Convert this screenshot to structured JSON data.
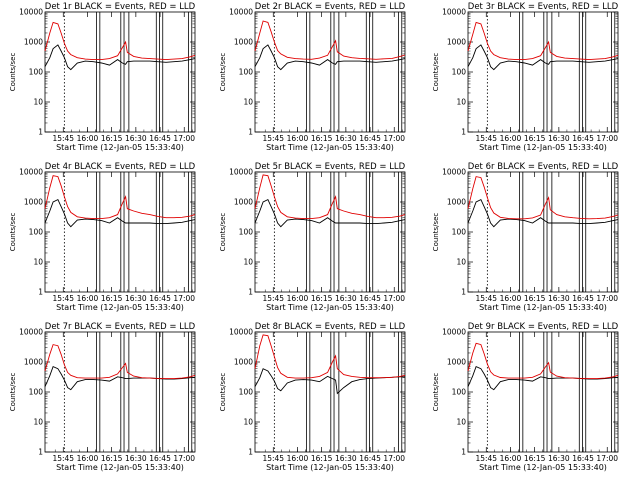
{
  "chart_data": {
    "type": "line",
    "layout": "3x3 grid",
    "y_scale": "log",
    "ylim": [
      1,
      10000
    ],
    "y_ticks": [
      "1",
      "10",
      "100",
      "1000",
      "10000"
    ],
    "ylabel": "Counts/sec",
    "x_ticks": [
      "15:45",
      "16:00",
      "16:15",
      "16:30",
      "16:45",
      "17:00"
    ],
    "xlabel": "Start Time (12-Jan-05 15:33:40)",
    "xlim_minutes_after_start": [
      0,
      93
    ],
    "series_colors": {
      "events": "#000000",
      "lld": "#e00000"
    },
    "time_minutes_after_start": [
      0,
      3,
      5,
      8,
      10,
      12,
      14,
      16,
      20,
      25,
      30,
      35,
      40,
      45,
      48,
      50,
      51,
      55,
      60,
      65,
      70,
      75,
      80,
      85,
      90,
      93
    ],
    "vertical_markers_minutes_after_start": [
      12,
      32,
      34,
      47,
      49,
      52,
      69,
      71,
      73,
      89,
      91
    ],
    "panels": [
      {
        "title": "Det 1r BLACK = Events, RED = LLD",
        "series": [
          {
            "color": "#000000",
            "values": [
              150,
              300,
              600,
              800,
              500,
              300,
              150,
              120,
              200,
              230,
              220,
              200,
              170,
              260,
              200,
              180,
              220,
              230,
              230,
              230,
              220,
              210,
              220,
              230,
              260,
              280
            ]
          },
          {
            "color": "#e00000",
            "values": [
              500,
              2000,
              4500,
              4000,
              2000,
              900,
              500,
              380,
              300,
              270,
              260,
              260,
              280,
              350,
              650,
              1000,
              450,
              330,
              290,
              280,
              270,
              260,
              270,
              280,
              320,
              360
            ]
          }
        ]
      },
      {
        "title": "Det 2r BLACK = Events, RED = LLD",
        "series": [
          {
            "color": "#000000",
            "values": [
              150,
              300,
              600,
              800,
              500,
              300,
              150,
              120,
              200,
              230,
              220,
              200,
              170,
              260,
              200,
              180,
              220,
              230,
              230,
              230,
              220,
              210,
              220,
              230,
              260,
              280
            ]
          },
          {
            "color": "#e00000",
            "values": [
              500,
              2000,
              5000,
              4500,
              2200,
              1000,
              520,
              400,
              310,
              280,
              270,
              265,
              290,
              360,
              700,
              1100,
              470,
              340,
              300,
              285,
              275,
              265,
              275,
              285,
              330,
              370
            ]
          }
        ]
      },
      {
        "title": "Det 3r BLACK = Events, RED = LLD",
        "series": [
          {
            "color": "#000000",
            "values": [
              150,
              300,
              600,
              800,
              500,
              300,
              150,
              120,
              200,
              230,
              220,
              200,
              170,
              260,
              200,
              180,
              220,
              230,
              230,
              230,
              220,
              210,
              220,
              230,
              260,
              280
            ]
          },
          {
            "color": "#e00000",
            "values": [
              500,
              1800,
              4500,
              4000,
              2000,
              900,
              500,
              380,
              300,
              270,
              260,
              260,
              280,
              350,
              650,
              1000,
              450,
              330,
              290,
              280,
              270,
              260,
              270,
              280,
              320,
              360
            ]
          }
        ]
      },
      {
        "title": "Det 4r BLACK = Events, RED = LLD",
        "series": [
          {
            "color": "#000000",
            "values": [
              200,
              500,
              1000,
              1200,
              700,
              400,
              200,
              150,
              250,
              270,
              260,
              240,
              200,
              300,
              230,
              200,
              200,
              200,
              200,
              200,
              190,
              190,
              200,
              210,
              240,
              260
            ]
          },
          {
            "color": "#e00000",
            "values": [
              600,
              3000,
              7500,
              7000,
              3500,
              1500,
              700,
              450,
              320,
              290,
              280,
              280,
              300,
              380,
              900,
              1500,
              600,
              500,
              420,
              380,
              330,
              300,
              300,
              310,
              340,
              380
            ]
          }
        ]
      },
      {
        "title": "Det 5r BLACK = Events, RED = LLD",
        "series": [
          {
            "color": "#000000",
            "values": [
              200,
              500,
              1000,
              1200,
              700,
              400,
              200,
              150,
              250,
              270,
              260,
              240,
              200,
              300,
              230,
              200,
              200,
              200,
              200,
              200,
              190,
              190,
              200,
              210,
              240,
              260
            ]
          },
          {
            "color": "#e00000",
            "values": [
              600,
              3000,
              8000,
              7500,
              3500,
              1500,
              700,
              450,
              320,
              290,
              280,
              280,
              300,
              380,
              900,
              1500,
              600,
              500,
              420,
              380,
              330,
              300,
              300,
              310,
              340,
              380
            ]
          }
        ]
      },
      {
        "title": "Det 6r BLACK = Events, RED = LLD",
        "series": [
          {
            "color": "#000000",
            "values": [
              200,
              500,
              1000,
              1200,
              700,
              400,
              200,
              150,
              250,
              270,
              260,
              240,
              200,
              300,
              230,
              200,
              200,
              200,
              200,
              200,
              190,
              190,
              200,
              210,
              240,
              260
            ]
          },
          {
            "color": "#e00000",
            "values": [
              600,
              2800,
              7000,
              6500,
              3200,
              1400,
              650,
              430,
              310,
              285,
              275,
              275,
              295,
              370,
              850,
              1400,
              550,
              380,
              320,
              300,
              285,
              275,
              280,
              290,
              330,
              370
            ]
          }
        ]
      },
      {
        "title": "Det 7r BLACK = Events, RED = LLD",
        "series": [
          {
            "color": "#000000",
            "values": [
              150,
              350,
              700,
              600,
              400,
              250,
              140,
              120,
              220,
              260,
              260,
              250,
              230,
              320,
              300,
              280,
              280,
              290,
              290,
              290,
              280,
              270,
              270,
              280,
              300,
              310
            ]
          },
          {
            "color": "#e00000",
            "values": [
              500,
              1800,
              3800,
              3500,
              1800,
              800,
              450,
              360,
              300,
              290,
              290,
              290,
              310,
              400,
              650,
              900,
              450,
              340,
              300,
              290,
              285,
              280,
              280,
              290,
              320,
              360
            ]
          }
        ]
      },
      {
        "title": "Det 8r BLACK = Events, RED = LLD",
        "series": [
          {
            "color": "#000000",
            "values": [
              150,
              300,
              600,
              500,
              350,
              230,
              130,
              110,
              200,
              250,
              260,
              250,
              220,
              330,
              280,
              250,
              90,
              140,
              220,
              260,
              280,
              290,
              300,
              310,
              320,
              320
            ]
          },
          {
            "color": "#e00000",
            "values": [
              600,
              3500,
              8000,
              7500,
              3500,
              1500,
              650,
              420,
              310,
              290,
              290,
              300,
              330,
              450,
              1000,
              1600,
              600,
              380,
              330,
              310,
              300,
              300,
              300,
              310,
              330,
              360
            ]
          }
        ]
      },
      {
        "title": "Det 9r BLACK = Events, RED = LLD",
        "series": [
          {
            "color": "#000000",
            "values": [
              150,
              350,
              700,
              600,
              400,
              250,
              140,
              120,
              220,
              260,
              260,
              250,
              230,
              320,
              300,
              280,
              280,
              290,
              290,
              290,
              280,
              270,
              270,
              280,
              300,
              310
            ]
          },
          {
            "color": "#e00000",
            "values": [
              500,
              2000,
              4200,
              3800,
              1900,
              850,
              470,
              370,
              305,
              290,
              290,
              290,
              310,
              400,
              680,
              950,
              460,
              340,
              300,
              290,
              285,
              280,
              280,
              290,
              320,
              360
            ]
          }
        ]
      }
    ]
  }
}
